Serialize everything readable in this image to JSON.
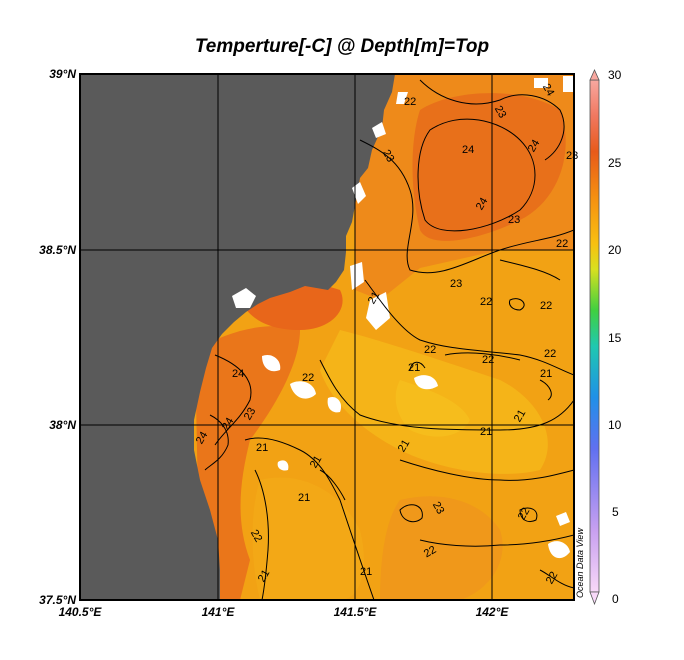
{
  "map": {
    "title": "Temperture[-C] @ Depth[m]=Top",
    "lat_labels": [
      "39°N",
      "38.5°N",
      "38°N",
      "37.5°N"
    ],
    "lon_labels": [
      "140.5°E",
      "141°E",
      "141.5°E",
      "142°E"
    ],
    "extent": {
      "lon": [
        140.5,
        142.3
      ],
      "lat": [
        37.5,
        39.0
      ]
    },
    "variable": "Temperature",
    "contour_labels": [
      "21",
      "22",
      "23",
      "24"
    ],
    "watermark": "Ocean Data View",
    "colors": {
      "land": "#5a5a5a",
      "warm": "#e8701a",
      "mid": "#f59a10",
      "cool": "#f4b416"
    }
  },
  "colorbar": {
    "min": 0,
    "max": 30,
    "ticks": [
      "30",
      "25",
      "20",
      "15",
      "10",
      "5",
      "0"
    ],
    "stops": [
      "#f8d8f8",
      "#c8a0f0",
      "#6070f0",
      "#2090e8",
      "#20d0a0",
      "#40d040",
      "#d8e020",
      "#f8c010",
      "#f59010",
      "#e85a1a",
      "#f07860",
      "#f8a8a0"
    ]
  }
}
